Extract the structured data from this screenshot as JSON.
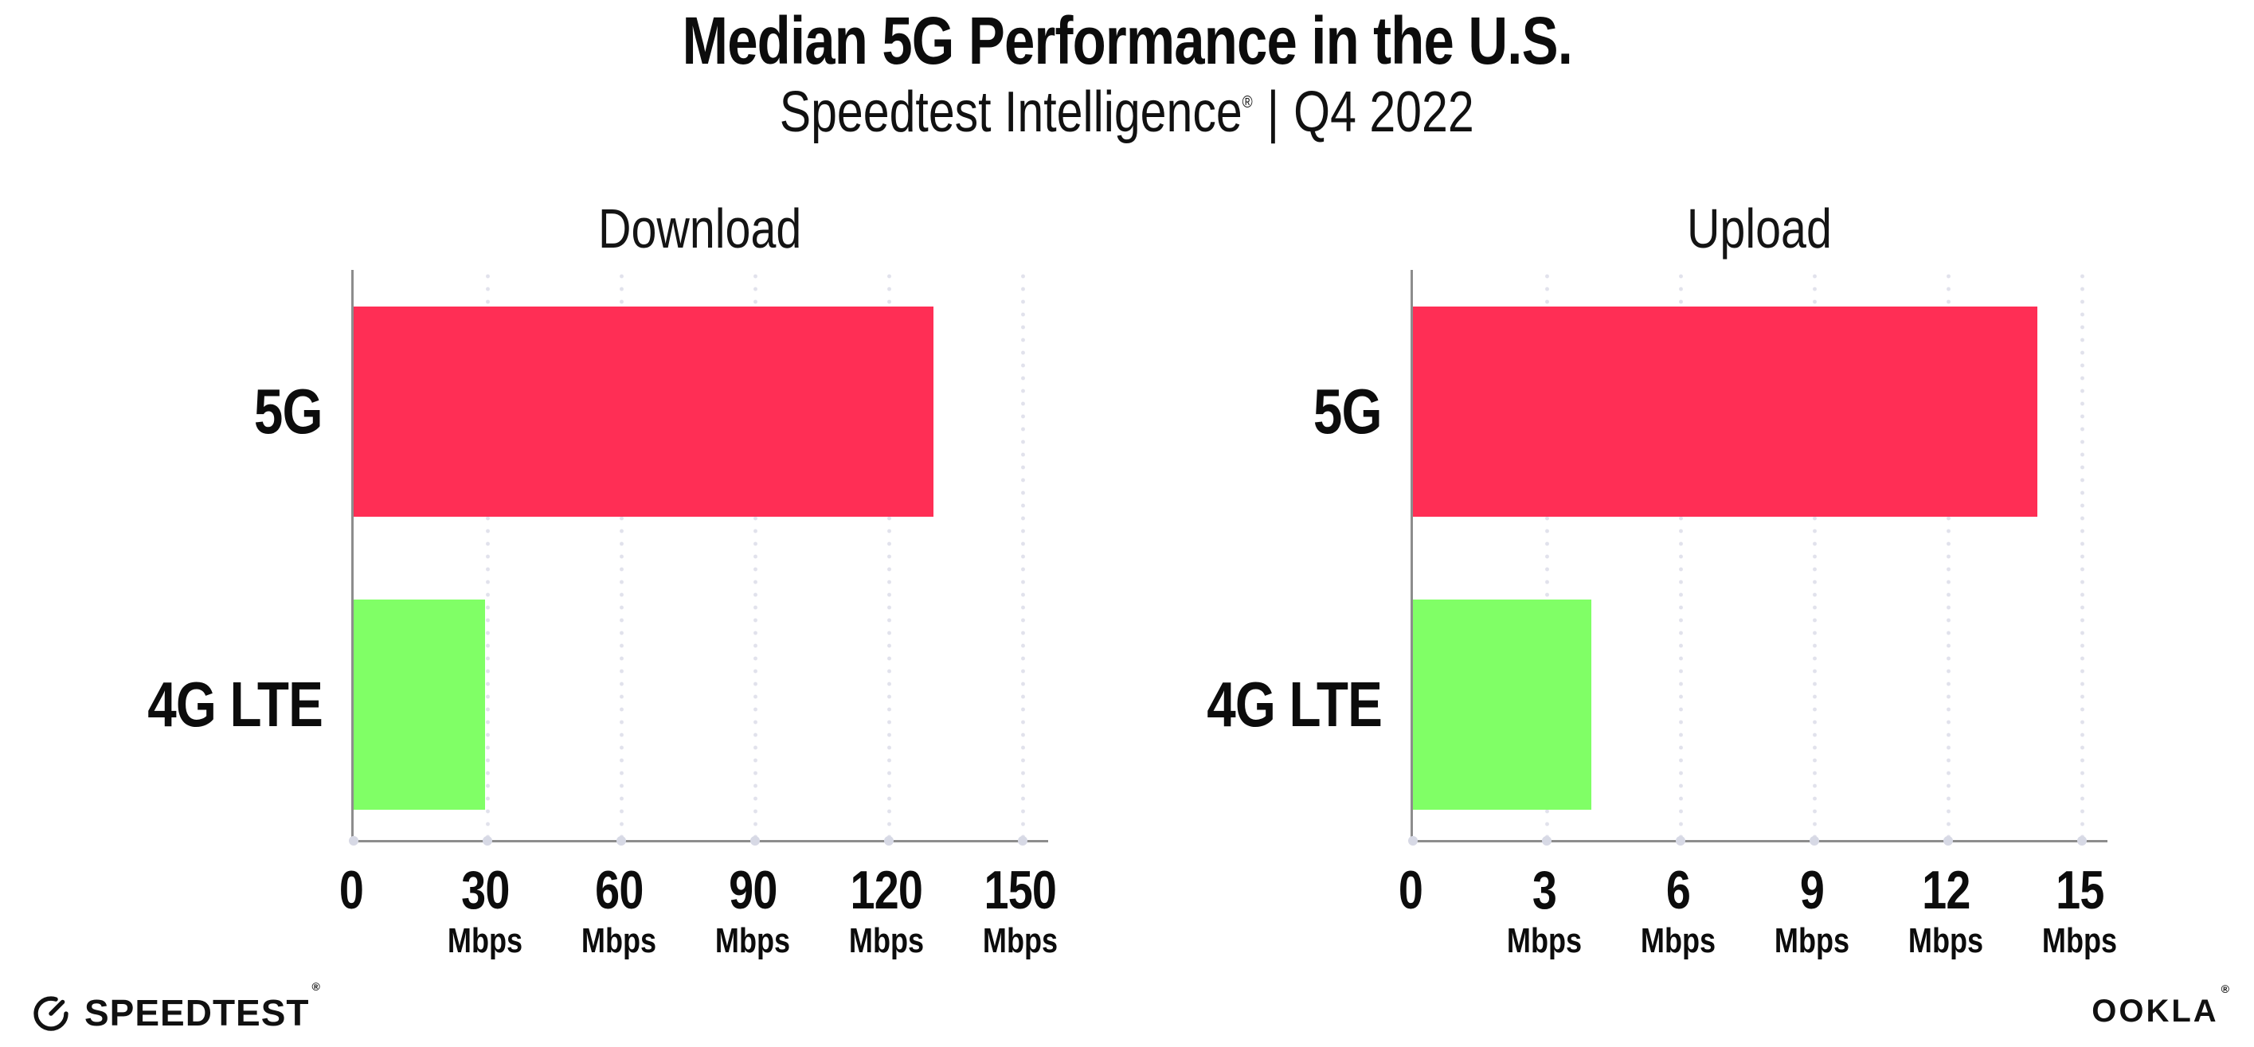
{
  "page": {
    "title": "Median 5G Performance in the U.S.",
    "subtitle": {
      "brand": "Speedtest Intelligence",
      "registered_mark": "®",
      "separator": "|",
      "period": "Q4 2022"
    }
  },
  "colors": {
    "bar_5g": "#FF2E55",
    "bar_4g_lte": "#80FF66",
    "axis": "#8D8D8D",
    "gridline_dots": "#E1E2EC",
    "axis_tick_dots": "#D7D9E5",
    "text": "#0C0C0C"
  },
  "chart_data": [
    {
      "type": "bar",
      "orientation": "horizontal",
      "title": "Download",
      "categories": [
        "5G",
        "4G LTE"
      ],
      "values": [
        130,
        29.5
      ],
      "unit": "Mbps",
      "xlim": [
        0,
        150
      ],
      "xticks": [
        0,
        30,
        60,
        90,
        120,
        150
      ],
      "bar_colors": [
        "#FF2E55",
        "#80FF66"
      ],
      "grid": "dotted-vertical-at-ticks",
      "unit_label_on_zero_tick": false,
      "legend": "none"
    },
    {
      "type": "bar",
      "orientation": "horizontal",
      "title": "Upload",
      "categories": [
        "5G",
        "4G LTE"
      ],
      "values": [
        14,
        4
      ],
      "unit": "Mbps",
      "xlim": [
        0,
        15
      ],
      "xticks": [
        0,
        3,
        6,
        9,
        12,
        15
      ],
      "bar_colors": [
        "#FF2E55",
        "#80FF66"
      ],
      "grid": "dotted-vertical-at-ticks",
      "unit_label_on_zero_tick": false,
      "legend": "none"
    }
  ],
  "footer": {
    "speedtest_logo_text": "SPEEDTEST",
    "speedtest_registered_mark": "®",
    "ookla_logo_text": "OOKLA",
    "ookla_registered_mark": "®"
  }
}
